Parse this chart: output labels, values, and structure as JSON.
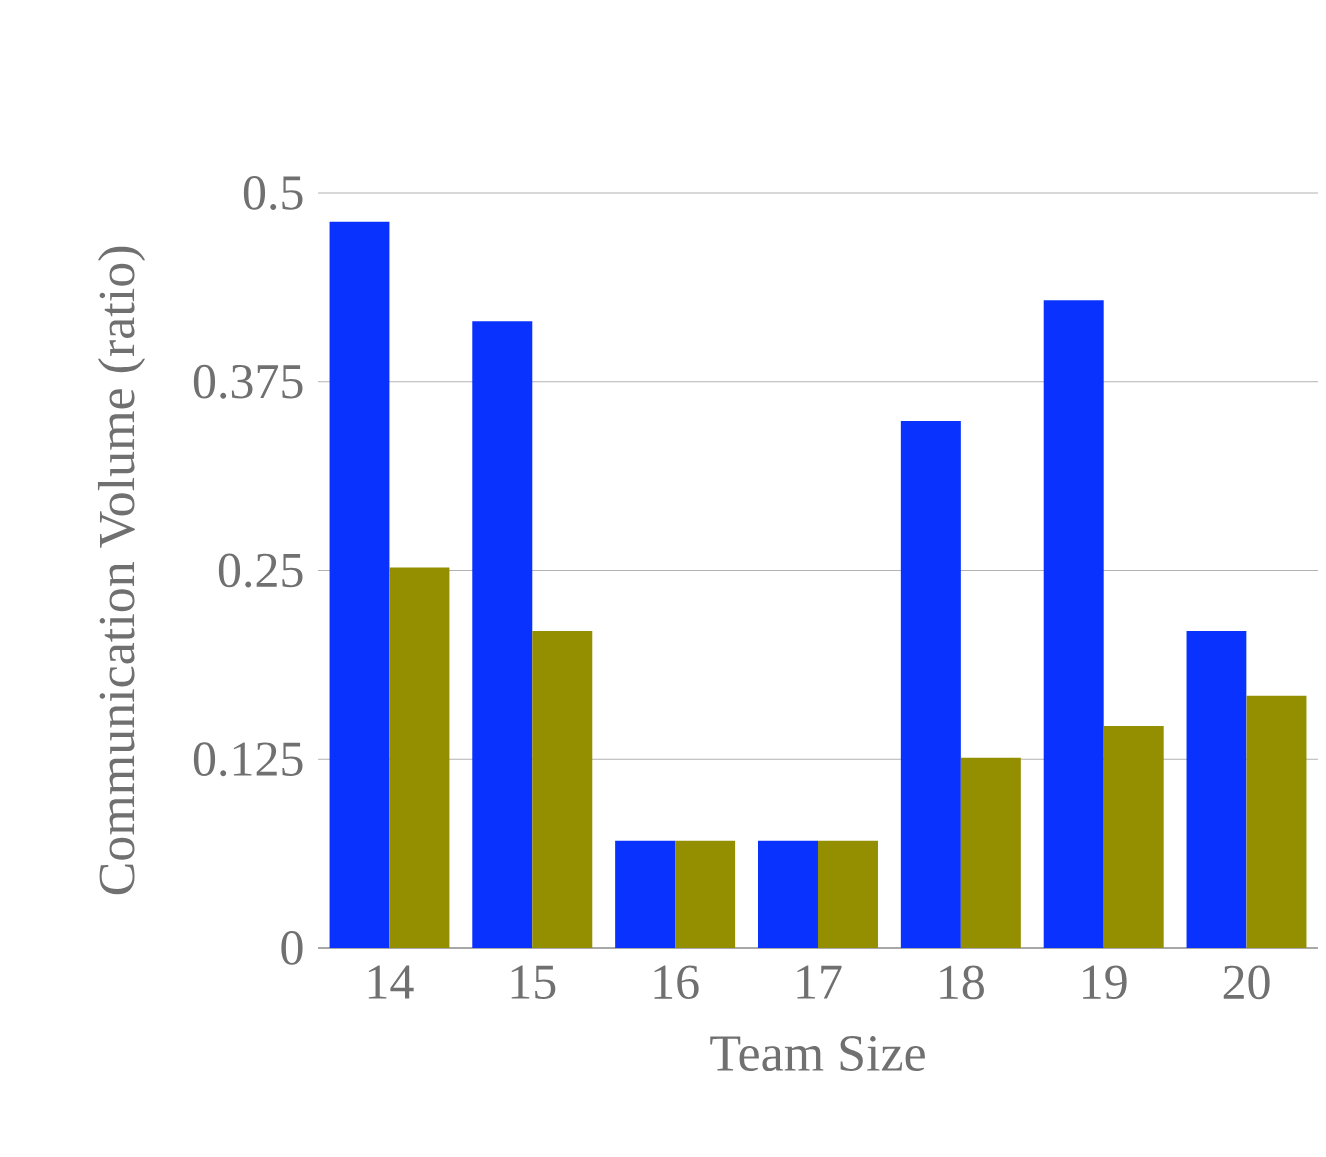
{
  "chart_data": {
    "type": "bar",
    "xlabel": "Team Size",
    "ylabel": "Communication Volume (ratio)",
    "categories": [
      "14",
      "15",
      "16",
      "17",
      "18",
      "19",
      "20"
    ],
    "series": [
      {
        "color": "#0a32ff",
        "values": [
          0.481,
          0.415,
          0.071,
          0.071,
          0.349,
          0.429,
          0.21
        ]
      },
      {
        "color": "#948f00",
        "values": [
          0.252,
          0.21,
          0.071,
          0.071,
          0.126,
          0.147,
          0.167
        ]
      }
    ],
    "ylim": [
      0,
      0.5
    ],
    "yticks": [
      0,
      0.125,
      0.25,
      0.375,
      0.5
    ],
    "grid": "y"
  }
}
